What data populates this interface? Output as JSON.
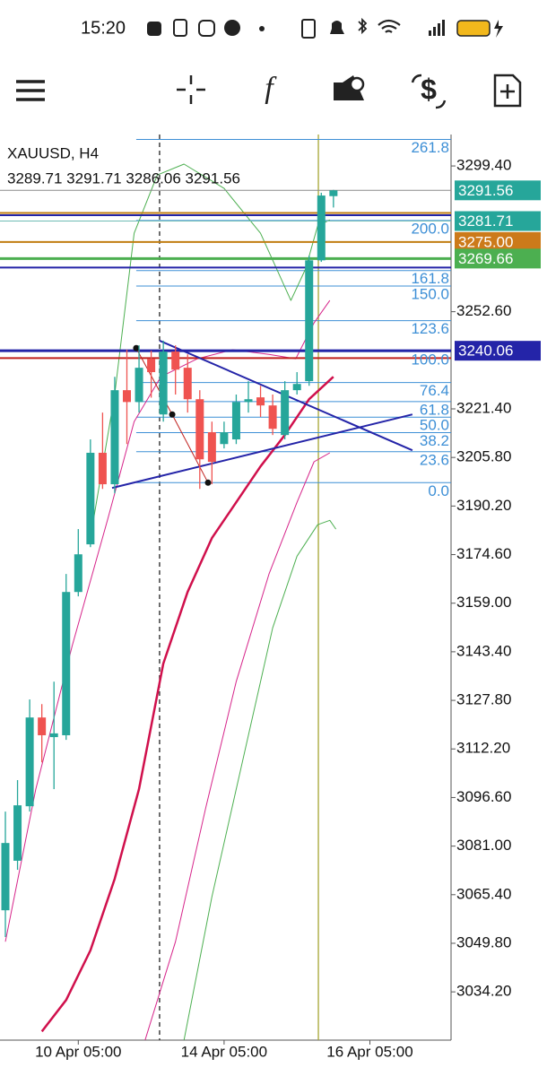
{
  "status_bar": {
    "time": "15:20"
  },
  "toolbar": {
    "function_icon": "f",
    "currency_icon": "$"
  },
  "chart_data": {
    "type": "candlestick",
    "symbol": "XAUUSD, H4",
    "ohlc_text": "3289.71 3291.71 3286.06 3291.56",
    "x": [
      0,
      1,
      2,
      3,
      4,
      5,
      6,
      7,
      8,
      9,
      10,
      11,
      12,
      13,
      14,
      15,
      16,
      17,
      18,
      19,
      20,
      21,
      22,
      23,
      24,
      25,
      26,
      27
    ],
    "open": [
      3060.4,
      3076.3,
      3093.8,
      3122.3,
      3116.0,
      3116.6,
      3162.6,
      3177.9,
      3207.3,
      3197.2,
      3227.4,
      3223.6,
      3237.5,
      3219.6,
      3239.8,
      3234.6,
      3224.5,
      3213.9,
      3210.1,
      3211.6,
      3223.6,
      3225.1,
      3222.5,
      3213.0,
      3227.4,
      3230.3,
      3269.1,
      3289.71
    ],
    "high": [
      3092.1,
      3102.2,
      3128.1,
      3126.6,
      3133.8,
      3168.4,
      3182.8,
      3211.6,
      3220.2,
      3231.7,
      3240.4,
      3241.8,
      3240.1,
      3243.3,
      3241.8,
      3238.9,
      3227.4,
      3217.3,
      3217.3,
      3226.0,
      3230.3,
      3228.8,
      3226.0,
      3230.3,
      3233.2,
      3270.6,
      3290.8,
      3291.71
    ],
    "low": [
      3051.8,
      3073.4,
      3092.1,
      3107.9,
      3099.3,
      3115.1,
      3161.2,
      3177.0,
      3195.7,
      3194.3,
      3210.1,
      3220.2,
      3225.0,
      3217.3,
      3226.0,
      3220.2,
      3195.7,
      3197.2,
      3208.7,
      3210.1,
      3220.2,
      3218.8,
      3213.0,
      3211.6,
      3226.0,
      3228.8,
      3268.6,
      3286.06
    ],
    "close": [
      3082.0,
      3094.1,
      3122.3,
      3116.6,
      3117.2,
      3162.6,
      3174.7,
      3207.3,
      3197.2,
      3227.4,
      3223.6,
      3234.6,
      3233.2,
      3239.8,
      3234.0,
      3224.5,
      3205.2,
      3204.4,
      3213.9,
      3223.6,
      3224.5,
      3222.5,
      3215.0,
      3227.4,
      3229.4,
      3269.1,
      3289.9,
      3291.56
    ],
    "up_color": "#26a69a",
    "down_color": "#ef5350",
    "xlim": [
      -0.443,
      36.68
    ],
    "xticks": [
      {
        "value": 6,
        "label": "10 Apr 05:00"
      },
      {
        "value": 18,
        "label": "14 Apr 05:00"
      },
      {
        "value": 30,
        "label": "16 Apr 05:00"
      }
    ],
    "ylim": [
      3018.7,
      3309.5
    ],
    "yticks": [
      {
        "value": 3299.4,
        "label": "3299.40"
      },
      {
        "value": 3252.6,
        "label": "3252.60"
      },
      {
        "value": 3221.4,
        "label": "3221.40"
      },
      {
        "value": 3205.8,
        "label": "3205.80"
      },
      {
        "value": 3190.2,
        "label": "3190.20"
      },
      {
        "value": 3174.6,
        "label": "3174.60"
      },
      {
        "value": 3159,
        "label": "3159.00"
      },
      {
        "value": 3143.4,
        "label": "3143.40"
      },
      {
        "value": 3127.8,
        "label": "3127.80"
      },
      {
        "value": 3112.2,
        "label": "3112.20"
      },
      {
        "value": 3096.6,
        "label": "3096.60"
      },
      {
        "value": 3081,
        "label": "3081.00"
      },
      {
        "value": 3065.4,
        "label": "3065.40"
      },
      {
        "value": 3049.8,
        "label": "3049.80"
      },
      {
        "value": 3034.2,
        "label": "3034.20"
      }
    ],
    "grid": false,
    "levels": [
      {
        "value": 3284.3,
        "color": "#c07d10",
        "width": 2
      },
      {
        "value": 3283.6,
        "color": "#2424a8",
        "width": 2
      },
      {
        "value": 3266.77,
        "color": "#2424a8",
        "width": 2
      },
      {
        "value": 3237.7,
        "color": "#c0201e",
        "width": 2
      },
      {
        "value": 3291.56,
        "label": "3291.56",
        "color": "#8a8a8a",
        "width": 1,
        "label_color": "#26a69a"
      },
      {
        "value": 3281.71,
        "label": "3281.71",
        "color": "#6fbcb4",
        "width": 1,
        "label_color": "#26a69a"
      },
      {
        "value": 3275,
        "label": "3275.00",
        "color": "#c07d10",
        "width": 2,
        "label_color": "#cc7a1a"
      },
      {
        "value": 3269.66,
        "label": "3269.66",
        "color": "#4caf50",
        "width": 3,
        "label_color": "#4caf50"
      },
      {
        "value": 3240.06,
        "label": "3240.06",
        "color": "#2424a8",
        "width": 3,
        "label_color": "#2424a8"
      }
    ],
    "fib": {
      "from": 3197.7,
      "to": 3239.8,
      "x_start": 10.77,
      "color": "#3d8fd6",
      "levels": [
        {
          "value": 261.8,
          "label": "261.8"
        },
        {
          "value": 200,
          "label": "200.0"
        },
        {
          "value": 161.8,
          "label": "161.8"
        },
        {
          "value": 150,
          "label": "150.0"
        },
        {
          "value": 123.6,
          "label": "123.6"
        },
        {
          "value": 100,
          "label": "100.0"
        },
        {
          "value": 76.4,
          "label": "76.4"
        },
        {
          "value": 61.8,
          "label": "61.8"
        },
        {
          "value": 50,
          "label": "50.0"
        },
        {
          "value": 38.2,
          "label": "38.2"
        },
        {
          "value": 23.6,
          "label": "23.6"
        },
        {
          "value": 0,
          "label": "0.0"
        }
      ]
    },
    "indicators": [
      {
        "color": "#d0104c",
        "width": 2.5,
        "x": [
          3,
          5,
          7,
          9,
          11,
          13,
          15,
          17,
          19,
          21,
          23,
          25,
          27
        ],
        "values": [
          3021.5,
          3031.6,
          3047.5,
          3070.5,
          3099.3,
          3139.6,
          3162.6,
          3179.9,
          3191.4,
          3202.9,
          3213.0,
          3224.5,
          3231.7
        ]
      },
      {
        "color": "#4caf50",
        "width": 1,
        "x": [
          7,
          9,
          10.6,
          12.5,
          14.7,
          18,
          21,
          23.5,
          24.7,
          25.7,
          26.7
        ],
        "values": [
          3179.9,
          3226.0,
          3277.8,
          3296.5,
          3300.0,
          3292.2,
          3277.8,
          3256.2,
          3266.3,
          3280.1,
          3282.1
        ]
      },
      {
        "color": "#4caf50",
        "width": 1,
        "x": [
          14.7,
          17,
          19.5,
          22,
          24,
          25.7,
          26.7,
          27.2
        ],
        "values": [
          3018.7,
          3064.7,
          3107.9,
          3151.1,
          3174.1,
          3184.2,
          3185.6,
          3182.8
        ]
      },
      {
        "color": "#d6248a",
        "width": 1,
        "x": [
          0,
          2.5,
          5.5,
          8.4,
          10.6,
          12.8,
          15.8,
          18.7,
          21.7,
          23.9,
          25.4,
          26.7
        ],
        "values": [
          3050.3,
          3099.3,
          3145.3,
          3185.6,
          3217.3,
          3231.7,
          3237.5,
          3240.4,
          3238.9,
          3237.5,
          3249.0,
          3256.2
        ]
      },
      {
        "color": "#d6248a",
        "width": 1,
        "x": [
          11.5,
          14,
          16.5,
          19,
          21.7,
          24,
          25.4,
          26.7
        ],
        "values": [
          3018.7,
          3050.3,
          3093.5,
          3133.8,
          3168.4,
          3191.4,
          3204.4,
          3207.3
        ]
      }
    ],
    "drawings": [
      {
        "color": "#2424a8",
        "width": 2,
        "x": [
          12.69,
          33.5
        ],
        "values": [
          3243.3,
          3208.1
        ]
      },
      {
        "color": "#2424a8",
        "width": 2,
        "x": [
          8.78,
          33.5
        ],
        "values": [
          3196.0,
          3219.6
        ]
      },
      {
        "color": "#c0201e",
        "width": 1,
        "markers": true,
        "x": [
          10.77,
          13.73,
          16.68
        ],
        "values": [
          3240.9,
          3219.6,
          3197.7
        ]
      }
    ],
    "vlines": [
      {
        "x": 12.69,
        "color": "#222222",
        "dash": true
      },
      {
        "x": 25.76,
        "color": "#a6a632",
        "dash": false
      }
    ]
  }
}
